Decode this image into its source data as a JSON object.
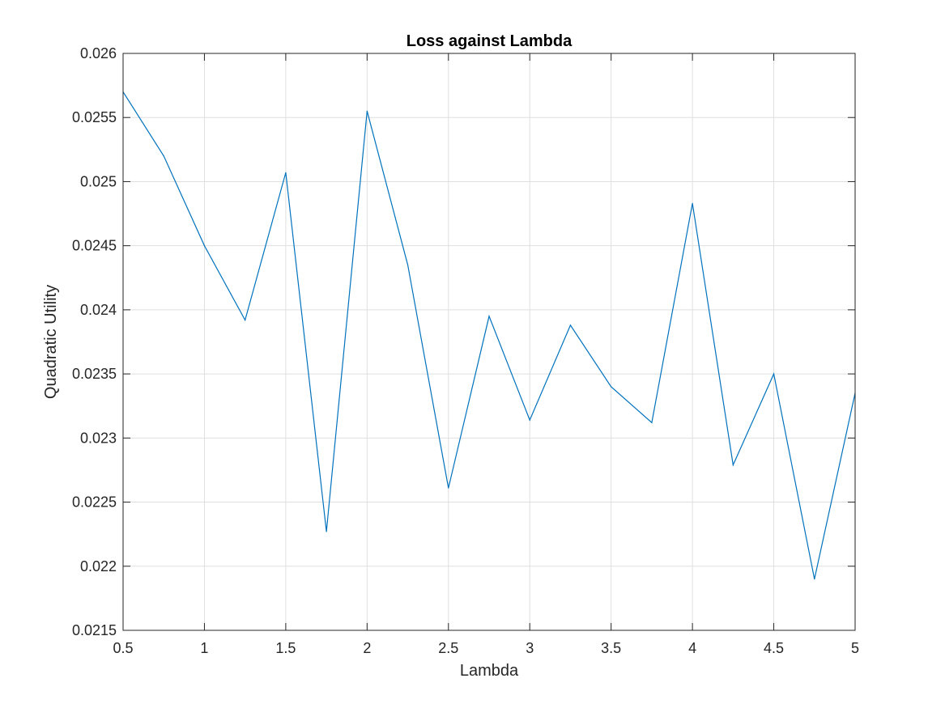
{
  "chart_data": {
    "type": "line",
    "title": "Loss against Lambda",
    "xlabel": "Lambda",
    "ylabel": "Quadratic Utility",
    "xlim": [
      0.5,
      5
    ],
    "ylim": [
      0.0215,
      0.026
    ],
    "grid": true,
    "box": true,
    "xticks": [
      0.5,
      1,
      1.5,
      2,
      2.5,
      3,
      3.5,
      4,
      4.5,
      5
    ],
    "xtick_labels": [
      "0.5",
      "1",
      "1.5",
      "2",
      "2.5",
      "3",
      "3.5",
      "4",
      "4.5",
      "5"
    ],
    "yticks": [
      0.0215,
      0.022,
      0.0225,
      0.023,
      0.0235,
      0.024,
      0.0245,
      0.025,
      0.0255,
      0.026
    ],
    "ytick_labels": [
      "0.0215",
      "0.022",
      "0.0225",
      "0.023",
      "0.0235",
      "0.024",
      "0.0245",
      "0.025",
      "0.0255",
      "0.026"
    ],
    "series": [
      {
        "color": "#0072bd",
        "x": [
          0.5,
          0.75,
          1,
          1.25,
          1.5,
          1.75,
          2,
          2.25,
          2.5,
          2.75,
          3,
          3.25,
          3.5,
          3.75,
          4,
          4.25,
          4.5,
          4.75,
          5
        ],
        "y": [
          0.0257,
          0.0252,
          0.0245,
          0.02392,
          0.02507,
          0.02227,
          0.02555,
          0.02435,
          0.02261,
          0.02395,
          0.02314,
          0.02388,
          0.0234,
          0.02312,
          0.02483,
          0.02279,
          0.0235,
          0.0219,
          0.02335
        ]
      }
    ]
  },
  "colors": {
    "axis": "#262626",
    "grid": "#dfdfdf",
    "background": "#ffffff"
  }
}
